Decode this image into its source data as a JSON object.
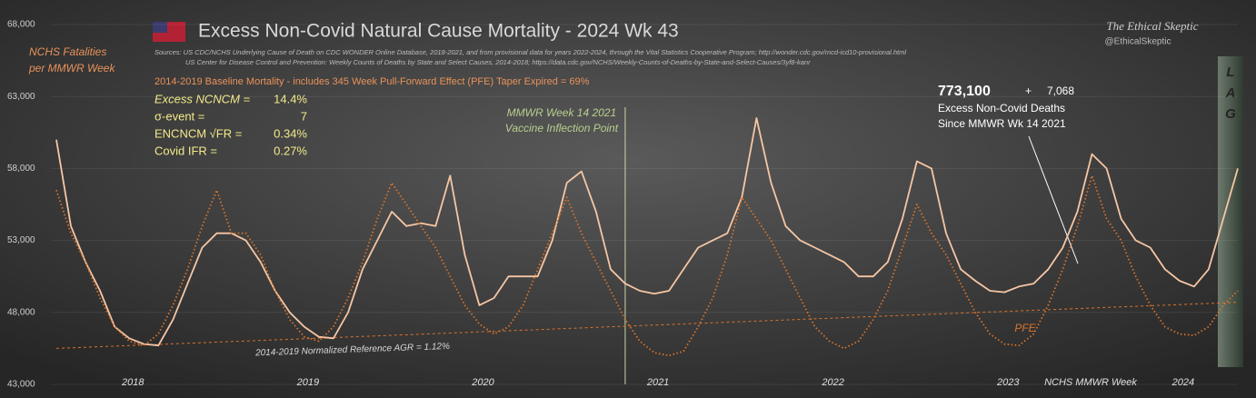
{
  "chart_data": {
    "type": "line",
    "title": "Excess Non-Covid Natural Cause Mortality - 2024 Wk 43",
    "sources": [
      "Sources:  US CDC/NCHS Underlying Cause of Death on CDC WONDER Online Database, 2018-2021, and from provisional data for years 2022-2024, through the Vital Statistics Cooperative Program; http://wonder.cdc.gov/mcd-icd10-provisional.html",
      "US Center for Disease Control and Prevention: Weekly  Counts of Deaths by State and Select Causes, 2014-2018; https://data.cdc.gov/NCHS/Weekly-Counts-of-Deaths-by-State-and-Select-Causes/3yf8-kanr"
    ],
    "brand": "The Ethical Skeptic",
    "handle": "@EthicalSkeptic",
    "y_label": [
      "NCHS Fatalities",
      "per MMWR Week"
    ],
    "subtitle": "2014-2019 Baseline Mortality - includes 345 Week Pull-Forward Effect (PFE) Taper Expired =  69%",
    "stats": [
      {
        "label": "Excess NCNCM =",
        "value": "14.4%"
      },
      {
        "label": "σ-event =",
        "value": "7"
      },
      {
        "label": "ENCNCM √FR =",
        "value": "0.34%"
      },
      {
        "label": "Covid IFR =",
        "value": "0.27%"
      }
    ],
    "excess_total": "773,100",
    "excess_plus": "+",
    "excess_week": "7,068",
    "excess_caption": [
      "Excess  Non-Covid Deaths",
      "Since MMWR Wk 14 2021"
    ],
    "vline_label": [
      "MMWR Week 14 2021",
      "Vaccine Inflection Point"
    ],
    "lag_label": [
      "L",
      "A",
      "G"
    ],
    "pfe_label": "PFE",
    "reference_label": "2014-2019 Normalized Reference AGR = 1.12%",
    "reference_line": {
      "start": 45500,
      "end": 48700
    },
    "x_label": "NCHS MMWR Week",
    "categories": [
      null,
      null,
      null,
      null,
      null,
      null,
      "2018",
      null,
      null,
      null,
      null,
      null,
      null,
      null,
      null,
      null,
      null,
      null,
      "2019",
      null,
      null,
      null,
      null,
      null,
      null,
      null,
      null,
      null,
      null,
      null,
      "2020",
      null,
      null,
      null,
      null,
      null,
      null,
      null,
      null,
      null,
      null,
      null,
      "2021",
      null,
      null,
      null,
      null,
      null,
      null,
      null,
      null,
      null,
      null,
      null,
      "2022",
      null,
      null,
      null,
      null,
      null,
      null,
      null,
      null,
      null,
      null,
      null,
      "2023",
      null,
      null,
      null,
      null,
      null,
      null,
      null,
      null,
      null,
      null,
      null,
      "2024",
      null,
      null,
      null
    ],
    "series": [
      {
        "name": "NCHS Fatalities",
        "color": "#f6c6a4",
        "dash": false,
        "values": [
          60000,
          54000,
          51500,
          49500,
          47000,
          46200,
          45800,
          45700,
          47500,
          50000,
          52500,
          53500,
          53500,
          53000,
          51500,
          49500,
          48000,
          47000,
          46300,
          46200,
          48000,
          51000,
          53000,
          55000,
          54000,
          54200,
          54000,
          57500,
          52000,
          48500,
          49000,
          50500,
          50500,
          50500,
          53000,
          57000,
          57800,
          55000,
          51000,
          50000,
          49500,
          49300,
          49500,
          51000,
          52500,
          53000,
          53500,
          56000,
          61500,
          57000,
          54000,
          53000,
          52500,
          52000,
          51500,
          50500,
          50500,
          51500,
          54500,
          58500,
          58000,
          53500,
          51000,
          50200,
          49500,
          49400,
          49800,
          50000,
          51000,
          52500,
          55000,
          59000,
          58000,
          54500,
          53000,
          52500,
          51000,
          50200,
          49800,
          51000,
          54500,
          58000
        ]
      },
      {
        "name": "2014-2019 Baseline Mortality",
        "color": "#d9742e",
        "dash": true,
        "values": [
          56500,
          53500,
          51500,
          49000,
          47000,
          46000,
          45700,
          46500,
          48500,
          51000,
          54000,
          56500,
          53500,
          53500,
          52000,
          49500,
          47500,
          46300,
          46000,
          47000,
          49000,
          51500,
          54500,
          57000,
          55500,
          54000,
          52500,
          50500,
          48500,
          47200,
          46500,
          47000,
          48500,
          51000,
          53500,
          56000,
          53500,
          51500,
          49500,
          47500,
          46000,
          45200,
          45000,
          45300,
          47000,
          49000,
          52000,
          56000,
          54500,
          53000,
          51000,
          49000,
          47000,
          46000,
          45500,
          46000,
          47500,
          49500,
          52500,
          55500,
          53500,
          52000,
          50000,
          48000,
          46500,
          45800,
          45700,
          46500,
          48500,
          51000,
          54000,
          57500,
          54500,
          53000,
          50500,
          48500,
          47000,
          46500,
          46400,
          47000,
          48500,
          49500
        ]
      }
    ],
    "ylim": [
      43000,
      68000
    ],
    "yticks": [
      {
        "value": 43000,
        "label": "43,000"
      },
      {
        "value": 48000,
        "label": "48,000"
      },
      {
        "value": 53000,
        "label": "53,000"
      },
      {
        "value": 58000,
        "label": "58,000"
      },
      {
        "value": 63000,
        "label": "63,000"
      },
      {
        "value": 68000,
        "label": "68,000"
      }
    ],
    "grid": true
  }
}
